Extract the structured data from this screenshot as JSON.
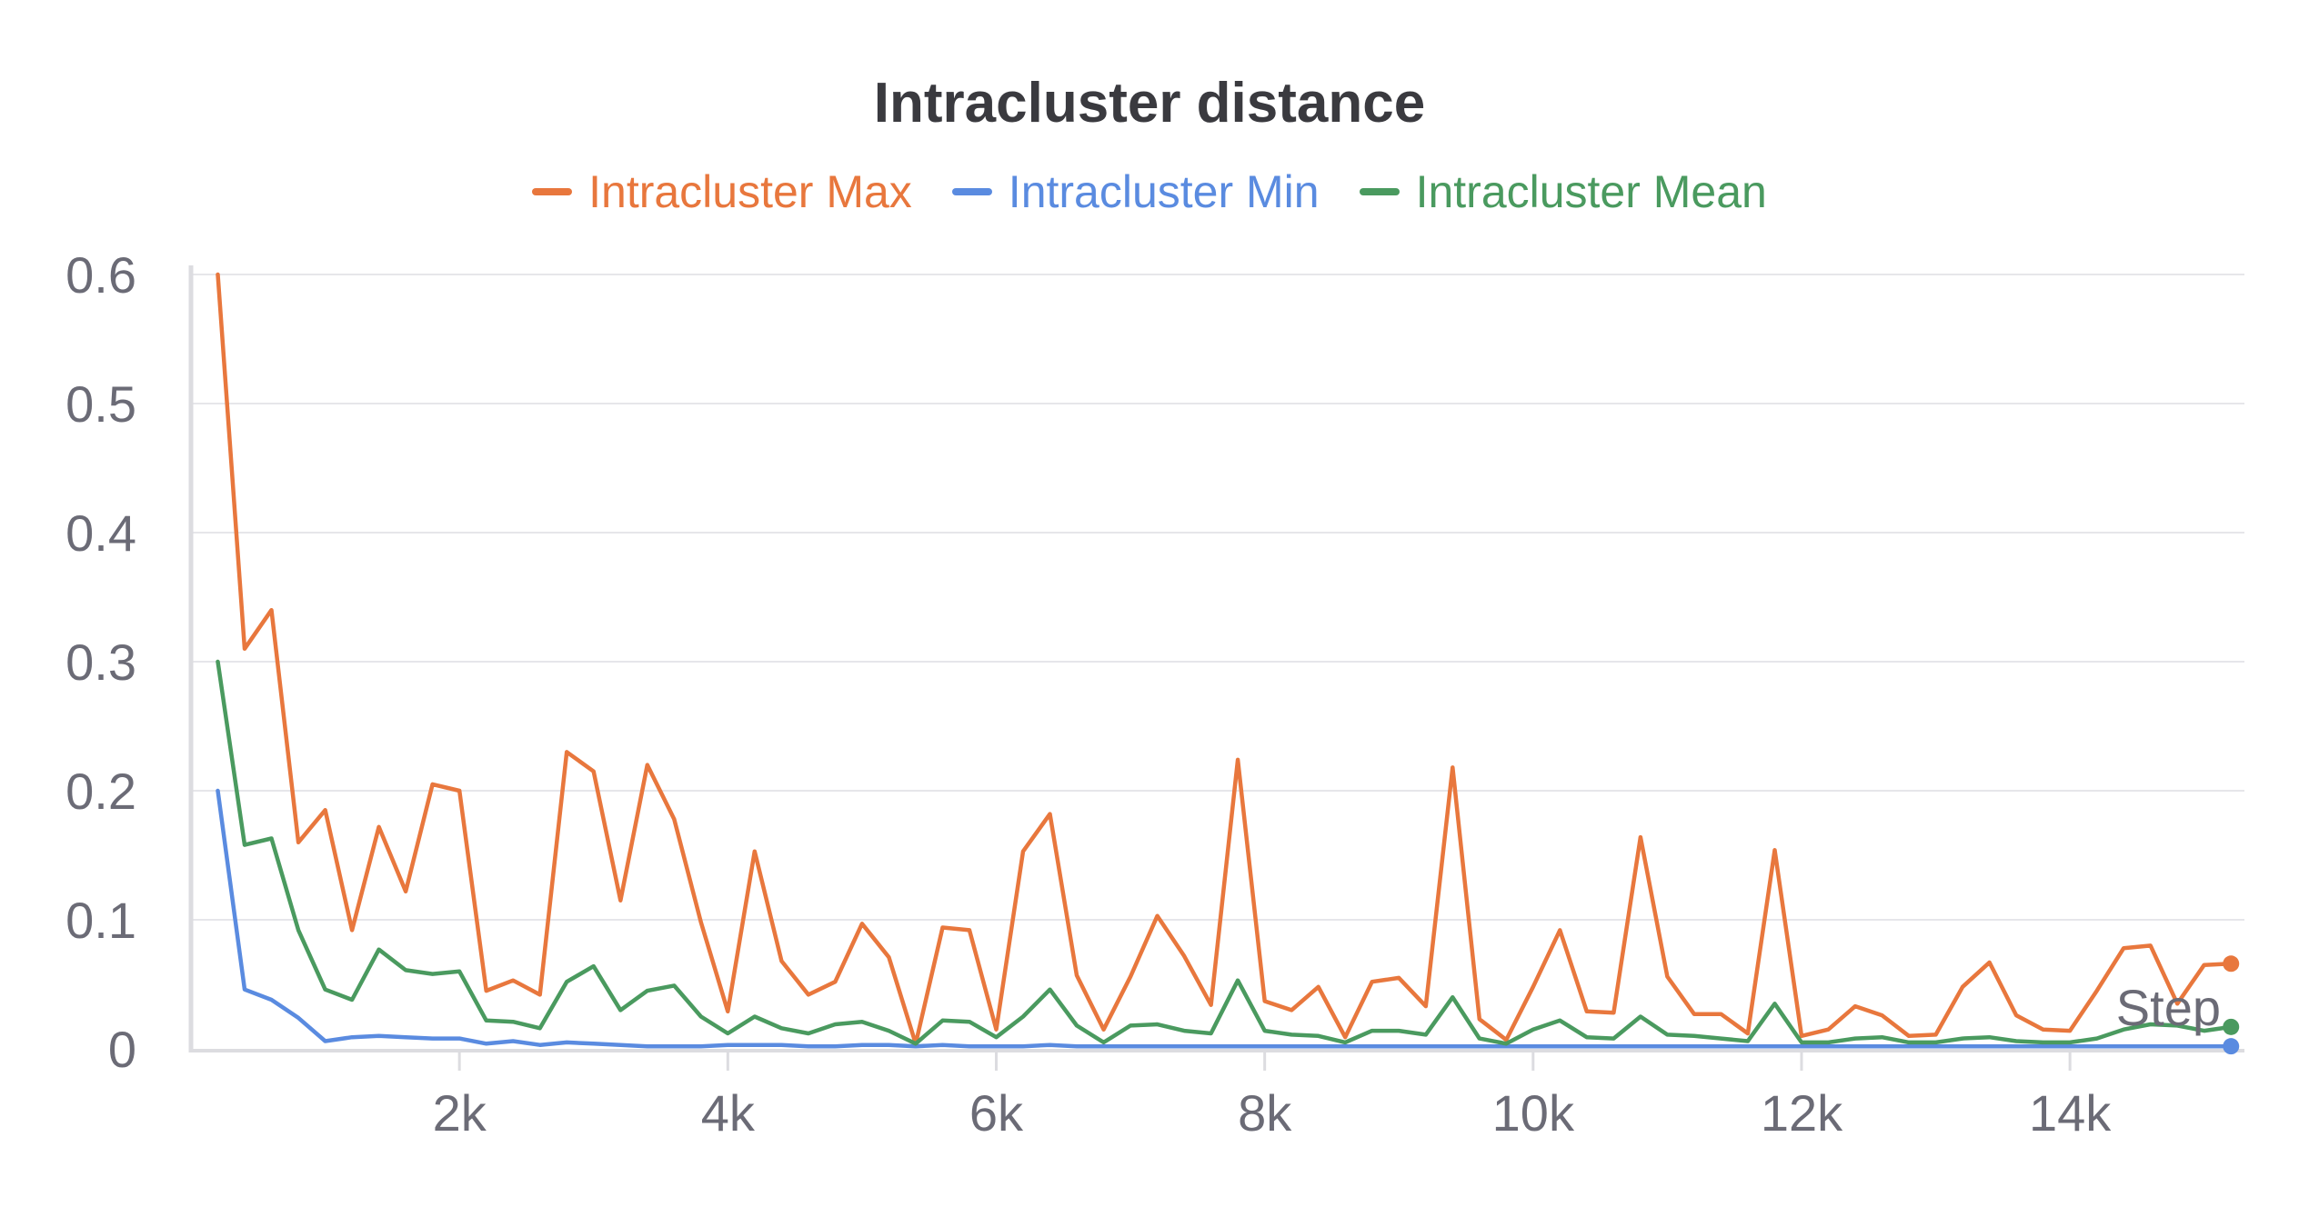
{
  "chart_data": {
    "type": "line",
    "title": "Intracluster distance",
    "xlabel": "Step",
    "ylabel": "",
    "xlim": [
      0,
      15300
    ],
    "ylim": [
      0,
      0.6
    ],
    "xticks": [
      2000,
      4000,
      6000,
      8000,
      10000,
      12000,
      14000
    ],
    "xtick_labels": [
      "2k",
      "4k",
      "6k",
      "8k",
      "10k",
      "12k",
      "14k"
    ],
    "yticks": [
      0,
      0.1,
      0.2,
      0.3,
      0.4,
      0.5,
      0.6
    ],
    "ytick_labels": [
      "0",
      "0.1",
      "0.2",
      "0.3",
      "0.4",
      "0.5",
      "0.6"
    ],
    "grid": "horizontal",
    "legend": "top-center",
    "x": [
      200,
      400,
      600,
      800,
      1000,
      1200,
      1400,
      1600,
      1800,
      2000,
      2200,
      2400,
      2600,
      2800,
      3000,
      3200,
      3400,
      3600,
      3800,
      4000,
      4200,
      4400,
      4600,
      4800,
      5000,
      5200,
      5400,
      5600,
      5800,
      6000,
      6200,
      6400,
      6600,
      6800,
      7000,
      7200,
      7400,
      7600,
      7800,
      8000,
      8200,
      8400,
      8600,
      8800,
      9000,
      9200,
      9400,
      9600,
      9800,
      10000,
      10200,
      10400,
      10600,
      10800,
      11000,
      11200,
      11400,
      11600,
      11800,
      12000,
      12200,
      12400,
      12600,
      12800,
      13000,
      13200,
      13400,
      13600,
      13800,
      14000,
      14200,
      14400,
      14600,
      14800,
      15000,
      15200
    ],
    "series": [
      {
        "name": "Intracluster Max",
        "color": "#e8773d",
        "values": [
          0.6,
          0.31,
          0.34,
          0.16,
          0.185,
          0.092,
          0.172,
          0.122,
          0.205,
          0.2,
          0.045,
          0.053,
          0.042,
          0.23,
          0.215,
          0.115,
          0.22,
          0.178,
          0.098,
          0.029,
          0.153,
          0.068,
          0.042,
          0.052,
          0.097,
          0.071,
          0.004,
          0.094,
          0.092,
          0.015,
          0.153,
          0.182,
          0.057,
          0.015,
          0.056,
          0.103,
          0.072,
          0.034,
          0.224,
          0.037,
          0.03,
          0.048,
          0.009,
          0.052,
          0.055,
          0.033,
          0.218,
          0.023,
          0.007,
          0.048,
          0.092,
          0.029,
          0.028,
          0.164,
          0.056,
          0.027,
          0.027,
          0.012,
          0.154,
          0.01,
          0.015,
          0.033,
          0.026,
          0.01,
          0.011,
          0.048,
          0.067,
          0.026,
          0.015,
          0.014,
          0.045,
          0.078,
          0.08,
          0.035,
          0.065,
          0.066
        ]
      },
      {
        "name": "Intracluster Min",
        "color": "#5a8be0",
        "values": [
          0.2,
          0.046,
          0.038,
          0.024,
          0.006,
          0.009,
          0.01,
          0.009,
          0.008,
          0.008,
          0.004,
          0.006,
          0.003,
          0.005,
          0.004,
          0.003,
          0.002,
          0.002,
          0.002,
          0.003,
          0.003,
          0.003,
          0.002,
          0.002,
          0.003,
          0.003,
          0.002,
          0.003,
          0.002,
          0.002,
          0.002,
          0.003,
          0.002,
          0.002,
          0.002,
          0.002,
          0.002,
          0.002,
          0.002,
          0.002,
          0.002,
          0.002,
          0.002,
          0.002,
          0.002,
          0.002,
          0.002,
          0.002,
          0.002,
          0.002,
          0.002,
          0.002,
          0.002,
          0.002,
          0.002,
          0.002,
          0.002,
          0.002,
          0.002,
          0.002,
          0.002,
          0.002,
          0.002,
          0.002,
          0.002,
          0.002,
          0.002,
          0.002,
          0.002,
          0.002,
          0.002,
          0.002,
          0.002,
          0.002,
          0.002,
          0.002
        ]
      },
      {
        "name": "Intracluster Mean",
        "color": "#4a9a5f",
        "values": [
          0.3,
          0.158,
          0.163,
          0.092,
          0.046,
          0.038,
          0.077,
          0.061,
          0.058,
          0.06,
          0.022,
          0.021,
          0.016,
          0.052,
          0.064,
          0.03,
          0.045,
          0.049,
          0.025,
          0.012,
          0.025,
          0.016,
          0.012,
          0.019,
          0.021,
          0.014,
          0.004,
          0.022,
          0.021,
          0.009,
          0.025,
          0.046,
          0.018,
          0.005,
          0.018,
          0.019,
          0.014,
          0.012,
          0.053,
          0.014,
          0.011,
          0.01,
          0.005,
          0.014,
          0.014,
          0.011,
          0.04,
          0.008,
          0.004,
          0.015,
          0.022,
          0.009,
          0.008,
          0.025,
          0.011,
          0.01,
          0.008,
          0.006,
          0.035,
          0.005,
          0.005,
          0.008,
          0.009,
          0.005,
          0.005,
          0.008,
          0.009,
          0.006,
          0.005,
          0.005,
          0.008,
          0.015,
          0.019,
          0.018,
          0.014,
          0.017
        ]
      }
    ]
  }
}
